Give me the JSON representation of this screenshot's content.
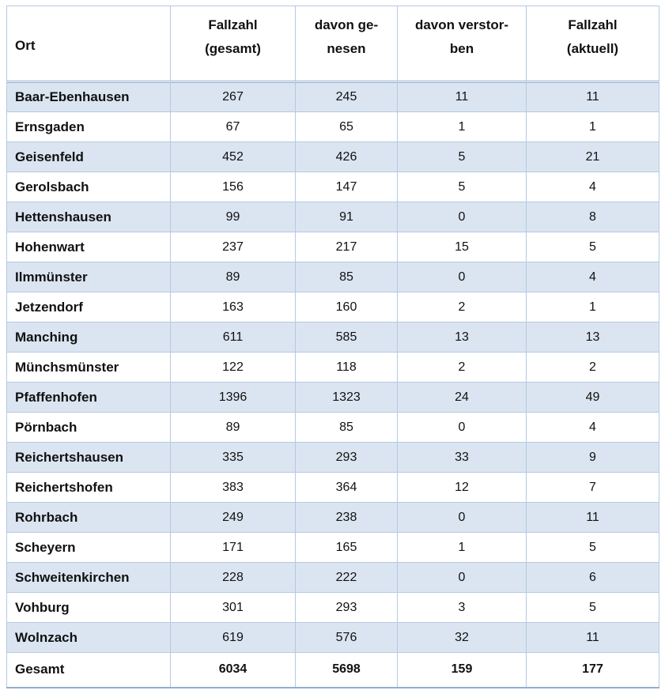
{
  "table": {
    "columns": [
      {
        "key": "ort",
        "label": "Ort"
      },
      {
        "key": "fallzahl_gesamt",
        "label": "Fallzahl\n(gesamt)"
      },
      {
        "key": "davon_genesen",
        "label": "davon ge-\nnesen"
      },
      {
        "key": "davon_verstorben",
        "label": "davon verstor-\nben"
      },
      {
        "key": "fallzahl_aktuell",
        "label": "Fallzahl\n(aktuell)"
      }
    ],
    "rows": [
      {
        "ort": "Baar-Ebenhausen",
        "fallzahl_gesamt": "267",
        "davon_genesen": "245",
        "davon_verstorben": "11",
        "fallzahl_aktuell": "11"
      },
      {
        "ort": "Ernsgaden",
        "fallzahl_gesamt": "67",
        "davon_genesen": "65",
        "davon_verstorben": "1",
        "fallzahl_aktuell": "1"
      },
      {
        "ort": "Geisenfeld",
        "fallzahl_gesamt": "452",
        "davon_genesen": "426",
        "davon_verstorben": "5",
        "fallzahl_aktuell": "21"
      },
      {
        "ort": "Gerolsbach",
        "fallzahl_gesamt": "156",
        "davon_genesen": "147",
        "davon_verstorben": "5",
        "fallzahl_aktuell": "4"
      },
      {
        "ort": "Hettenshausen",
        "fallzahl_gesamt": "99",
        "davon_genesen": "91",
        "davon_verstorben": "0",
        "fallzahl_aktuell": "8"
      },
      {
        "ort": "Hohenwart",
        "fallzahl_gesamt": "237",
        "davon_genesen": "217",
        "davon_verstorben": "15",
        "fallzahl_aktuell": "5"
      },
      {
        "ort": "Ilmmünster",
        "fallzahl_gesamt": "89",
        "davon_genesen": "85",
        "davon_verstorben": "0",
        "fallzahl_aktuell": "4"
      },
      {
        "ort": "Jetzendorf",
        "fallzahl_gesamt": "163",
        "davon_genesen": "160",
        "davon_verstorben": "2",
        "fallzahl_aktuell": "1"
      },
      {
        "ort": "Manching",
        "fallzahl_gesamt": "611",
        "davon_genesen": "585",
        "davon_verstorben": "13",
        "fallzahl_aktuell": "13"
      },
      {
        "ort": "Münchsmünster",
        "fallzahl_gesamt": "122",
        "davon_genesen": "118",
        "davon_verstorben": "2",
        "fallzahl_aktuell": "2"
      },
      {
        "ort": "Pfaffenhofen",
        "fallzahl_gesamt": "1396",
        "davon_genesen": "1323",
        "davon_verstorben": "24",
        "fallzahl_aktuell": "49"
      },
      {
        "ort": "Pörnbach",
        "fallzahl_gesamt": "89",
        "davon_genesen": "85",
        "davon_verstorben": "0",
        "fallzahl_aktuell": "4"
      },
      {
        "ort": "Reichertshausen",
        "fallzahl_gesamt": "335",
        "davon_genesen": "293",
        "davon_verstorben": "33",
        "fallzahl_aktuell": "9"
      },
      {
        "ort": "Reichertshofen",
        "fallzahl_gesamt": "383",
        "davon_genesen": "364",
        "davon_verstorben": "12",
        "fallzahl_aktuell": "7"
      },
      {
        "ort": "Rohrbach",
        "fallzahl_gesamt": "249",
        "davon_genesen": "238",
        "davon_verstorben": "0",
        "fallzahl_aktuell": "11"
      },
      {
        "ort": "Scheyern",
        "fallzahl_gesamt": "171",
        "davon_genesen": "165",
        "davon_verstorben": "1",
        "fallzahl_aktuell": "5"
      },
      {
        "ort": "Schweitenkirchen",
        "fallzahl_gesamt": "228",
        "davon_genesen": "222",
        "davon_verstorben": "0",
        "fallzahl_aktuell": "6"
      },
      {
        "ort": "Vohburg",
        "fallzahl_gesamt": "301",
        "davon_genesen": "293",
        "davon_verstorben": "3",
        "fallzahl_aktuell": "5"
      },
      {
        "ort": "Wolnzach",
        "fallzahl_gesamt": "619",
        "davon_genesen": "576",
        "davon_verstorben": "32",
        "fallzahl_aktuell": "11"
      }
    ],
    "total_row": {
      "ort": "Gesamt",
      "fallzahl_gesamt": "6034",
      "davon_genesen": "5698",
      "davon_verstorben": "159",
      "fallzahl_aktuell": "177"
    }
  },
  "colors": {
    "row_shade": "#dbe5f1",
    "border_light": "#b6c9e2",
    "border_strong": "#93add1",
    "text": "#111111"
  }
}
